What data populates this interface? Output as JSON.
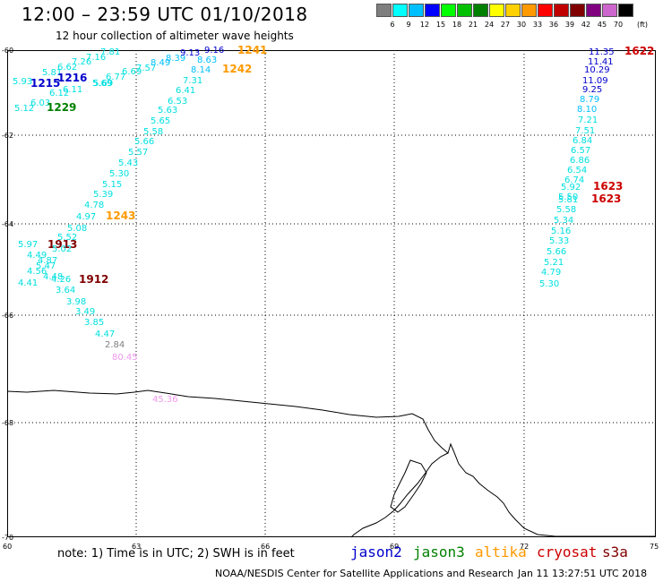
{
  "header": {
    "title": "12:00 – 23:59 UTC 01/10/2018",
    "subtitle": "12 hour collection of altimeter wave heights"
  },
  "legend": {
    "unit": "(ft)",
    "levels": [
      {
        "label": "3",
        "color": "#7f7f7f"
      },
      {
        "label": "6",
        "color": "#00ffff"
      },
      {
        "label": "9",
        "color": "#00bfff"
      },
      {
        "label": "12",
        "color": "#0000ff"
      },
      {
        "label": "15",
        "color": "#00ff00"
      },
      {
        "label": "18",
        "color": "#00c000"
      },
      {
        "label": "21",
        "color": "#008000"
      },
      {
        "label": "24",
        "color": "#ffff00"
      },
      {
        "label": "27",
        "color": "#ffd000"
      },
      {
        "label": "30",
        "color": "#ff9900"
      },
      {
        "label": "33",
        "color": "#ff0000"
      },
      {
        "label": "36",
        "color": "#c00000"
      },
      {
        "label": "39",
        "color": "#800000"
      },
      {
        "label": "42",
        "color": "#800080"
      },
      {
        "label": "45",
        "color": "#cc66cc"
      },
      {
        "label": "70",
        "color": "#000000"
      }
    ]
  },
  "map": {
    "lat_labels": [
      "-60",
      "-62",
      "-64",
      "-66",
      "-68",
      "-70"
    ],
    "lon_labels": [
      "60",
      "63",
      "66",
      "69",
      "72",
      "75"
    ]
  },
  "track_labels": [
    {
      "text": "7.81",
      "color": "#00e0e0"
    },
    {
      "text": "7.16",
      "color": "#00e0e0"
    },
    {
      "text": "7.26",
      "color": "#00e0e0"
    },
    {
      "text": "6.62",
      "color": "#00e0e0"
    },
    {
      "text": "5.81",
      "color": "#00e0e0"
    },
    {
      "text": "5.93",
      "color": "#00e0e0"
    },
    {
      "text": "1215",
      "color": "#0000cc"
    },
    {
      "text": "1216",
      "color": "#0000cc"
    },
    {
      "text": "6.12",
      "color": "#00e0e0"
    },
    {
      "text": "6.11",
      "color": "#00e0e0"
    },
    {
      "text": "5.69",
      "color": "#00e0e0"
    },
    {
      "text": "6.03",
      "color": "#00e0e0"
    },
    {
      "text": "1229",
      "color": "#008000"
    },
    {
      "text": "5.12",
      "color": "#00e0e0"
    },
    {
      "text": "6.77",
      "color": "#00e0e0"
    },
    {
      "text": "5.69",
      "color": "#00e0e0"
    },
    {
      "text": "6.69",
      "color": "#00e0e0"
    },
    {
      "text": "7.57",
      "color": "#00e0e0"
    },
    {
      "text": "8.49",
      "color": "#00bfff"
    },
    {
      "text": "8.39",
      "color": "#00bfff"
    },
    {
      "text": "9.13",
      "color": "#0000cc"
    },
    {
      "text": "9.16",
      "color": "#0000cc"
    },
    {
      "text": "1241",
      "color": "#ff9900"
    },
    {
      "text": "8.63",
      "color": "#00bfff"
    },
    {
      "text": "8.14",
      "color": "#00bfff"
    },
    {
      "text": "1242",
      "color": "#ff9900"
    },
    {
      "text": "7.31",
      "color": "#00e0e0"
    },
    {
      "text": "6.41",
      "color": "#00e0e0"
    },
    {
      "text": "6.53",
      "color": "#00e0e0"
    },
    {
      "text": "5.63",
      "color": "#00e0e0"
    },
    {
      "text": "5.65",
      "color": "#00e0e0"
    },
    {
      "text": "5.58",
      "color": "#00e0e0"
    },
    {
      "text": "5.66",
      "color": "#00e0e0"
    },
    {
      "text": "5.57",
      "color": "#00e0e0"
    },
    {
      "text": "5.43",
      "color": "#00e0e0"
    },
    {
      "text": "5.30",
      "color": "#00e0e0"
    },
    {
      "text": "5.15",
      "color": "#00e0e0"
    },
    {
      "text": "5.39",
      "color": "#00e0e0"
    },
    {
      "text": "4.78",
      "color": "#00e0e0"
    },
    {
      "text": "4.97",
      "color": "#00e0e0"
    },
    {
      "text": "1243",
      "color": "#ff9900"
    },
    {
      "text": "5.08",
      "color": "#00e0e0"
    },
    {
      "text": "5.52",
      "color": "#00e0e0"
    },
    {
      "text": "5.97",
      "color": "#00e0e0"
    },
    {
      "text": "1913",
      "color": "#800000"
    },
    {
      "text": "5.02",
      "color": "#00e0e0"
    },
    {
      "text": "4.49",
      "color": "#00e0e0"
    },
    {
      "text": "4.87",
      "color": "#00e0e0"
    },
    {
      "text": "5.47",
      "color": "#00e0e0"
    },
    {
      "text": "4.56",
      "color": "#00e0e0"
    },
    {
      "text": "4.48",
      "color": "#00e0e0"
    },
    {
      "text": "4.41",
      "color": "#00e0e0"
    },
    {
      "text": "4.26",
      "color": "#00e0e0"
    },
    {
      "text": "1912",
      "color": "#800000"
    },
    {
      "text": "3.64",
      "color": "#00e0e0"
    },
    {
      "text": "3.98",
      "color": "#00e0e0"
    },
    {
      "text": "3.49",
      "color": "#00e0e0"
    },
    {
      "text": "3.85",
      "color": "#00e0e0"
    },
    {
      "text": "4.47",
      "color": "#00e0e0"
    },
    {
      "text": "2.84",
      "color": "#7f7f7f"
    },
    {
      "text": "80.45",
      "color": "#ee99ee"
    },
    {
      "text": "45.36",
      "color": "#ee99ee"
    },
    {
      "text": "11.35",
      "color": "#0000cc"
    },
    {
      "text": "1622",
      "color": "#cc0000"
    },
    {
      "text": "11.41",
      "color": "#0000cc"
    },
    {
      "text": "10.29",
      "color": "#0000cc"
    },
    {
      "text": "11.09",
      "color": "#0000cc"
    },
    {
      "text": "9.25",
      "color": "#0000cc"
    },
    {
      "text": "8.79",
      "color": "#00bfff"
    },
    {
      "text": "8.10",
      "color": "#00bfff"
    },
    {
      "text": "7.21",
      "color": "#00e0e0"
    },
    {
      "text": "7.51",
      "color": "#00e0e0"
    },
    {
      "text": "6.84",
      "color": "#00e0e0"
    },
    {
      "text": "6.57",
      "color": "#00e0e0"
    },
    {
      "text": "6.86",
      "color": "#00e0e0"
    },
    {
      "text": "6.54",
      "color": "#00e0e0"
    },
    {
      "text": "6.74",
      "color": "#00e0e0"
    },
    {
      "text": "5.92",
      "color": "#00e0e0"
    },
    {
      "text": "1623",
      "color": "#cc0000"
    },
    {
      "text": "5.50",
      "color": "#00e0e0"
    },
    {
      "text": "5.81",
      "color": "#00e0e0"
    },
    {
      "text": "1623",
      "color": "#cc0000"
    },
    {
      "text": "5.58",
      "color": "#00e0e0"
    },
    {
      "text": "5.34",
      "color": "#00e0e0"
    },
    {
      "text": "5.16",
      "color": "#00e0e0"
    },
    {
      "text": "5.33",
      "color": "#00e0e0"
    },
    {
      "text": "5.66",
      "color": "#00e0e0"
    },
    {
      "text": "5.21",
      "color": "#00e0e0"
    },
    {
      "text": "4.79",
      "color": "#00e0e0"
    },
    {
      "text": "5.30",
      "color": "#00e0e0"
    }
  ],
  "note": "note: 1) Time is in UTC; 2) SWH is in feet",
  "satellites": [
    {
      "name": "jason2",
      "color": "#0000cc"
    },
    {
      "name": "jason3",
      "color": "#008000"
    },
    {
      "name": "altika",
      "color": "#ff9900"
    },
    {
      "name": "cryosat",
      "color": "#cc0000"
    },
    {
      "name": "s3a",
      "color": "#800000"
    }
  ],
  "footer": {
    "credit": "NOAA/NESDIS Center for Satellite Applications and Research",
    "timestamp": "Jan 11 13:27:51 UTC 2018"
  }
}
